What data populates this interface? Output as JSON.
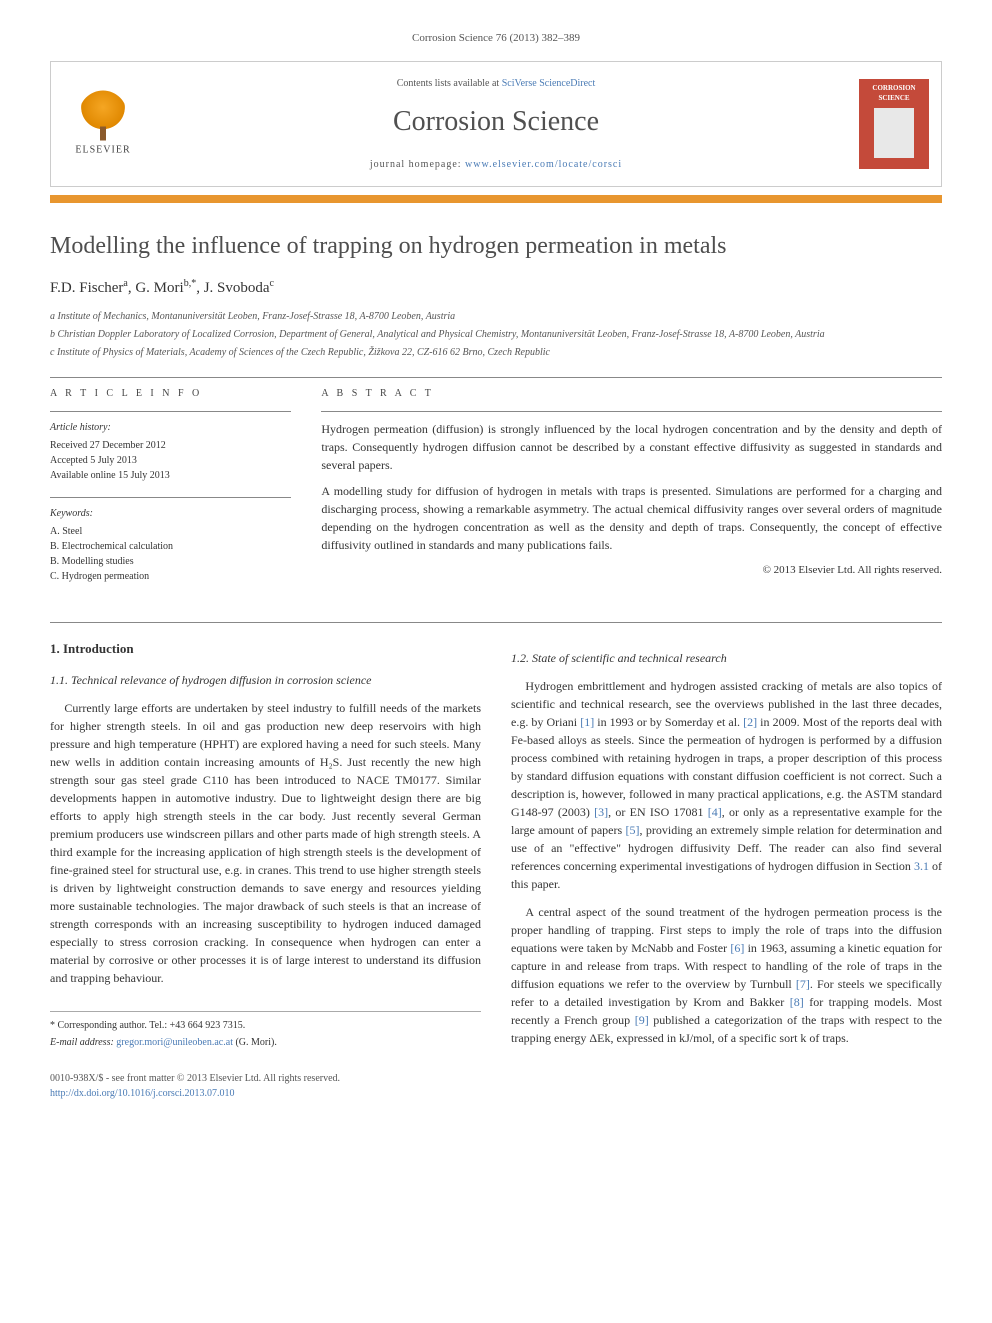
{
  "journal_ref": "Corrosion Science 76 (2013) 382–389",
  "header": {
    "contents_prefix": "Contents lists available at ",
    "contents_link": "SciVerse ScienceDirect",
    "journal_title": "Corrosion Science",
    "homepage_prefix": "journal homepage: ",
    "homepage_url": "www.elsevier.com/locate/corsci",
    "publisher_name": "ELSEVIER",
    "thumb_title": "CORROSION SCIENCE"
  },
  "article": {
    "title": "Modelling the influence of trapping on hydrogen permeation in metals",
    "authors_html": "F.D. Fischer<sup>a</sup>, G. Mori<sup>b,*</sup>, J. Svoboda<sup>c</sup>",
    "affiliations": [
      "a Institute of Mechanics, Montanuniversität Leoben, Franz-Josef-Strasse 18, A-8700 Leoben, Austria",
      "b Christian Doppler Laboratory of Localized Corrosion, Department of General, Analytical and Physical Chemistry, Montanuniversität Leoben, Franz-Josef-Strasse 18, A-8700 Leoben, Austria",
      "c Institute of Physics of Materials, Academy of Sciences of the Czech Republic, Žižkova 22, CZ-616 62 Brno, Czech Republic"
    ]
  },
  "info": {
    "label": "A R T I C L E   I N F O",
    "history_hdr": "Article history:",
    "history": [
      "Received 27 December 2012",
      "Accepted 5 July 2013",
      "Available online 15 July 2013"
    ],
    "keywords_hdr": "Keywords:",
    "keywords": [
      "A. Steel",
      "B. Electrochemical calculation",
      "B. Modelling studies",
      "C. Hydrogen permeation"
    ]
  },
  "abstract": {
    "label": "A B S T R A C T",
    "p1": "Hydrogen permeation (diffusion) is strongly influenced by the local hydrogen concentration and by the density and depth of traps. Consequently hydrogen diffusion cannot be described by a constant effective diffusivity as suggested in standards and several papers.",
    "p2": "A modelling study for diffusion of hydrogen in metals with traps is presented. Simulations are performed for a charging and discharging process, showing a remarkable asymmetry. The actual chemical diffusivity ranges over several orders of magnitude depending on the hydrogen concentration as well as the density and depth of traps. Consequently, the concept of effective diffusivity outlined in standards and many publications fails.",
    "copyright": "© 2013 Elsevier Ltd. All rights reserved."
  },
  "body": {
    "sec1": "1. Introduction",
    "sub11": "1.1. Technical relevance of hydrogen diffusion in corrosion science",
    "p11": "Currently large efforts are undertaken by steel industry to fulfill needs of the markets for higher strength steels. In oil and gas production new deep reservoirs with high pressure and high temperature (HPHT) are explored having a need for such steels. Many new wells in addition contain increasing amounts of H₂S. Just recently the new high strength sour gas steel grade C110 has been introduced to NACE TM0177. Similar developments happen in automotive industry. Due to lightweight design there are big efforts to apply high strength steels in the car body. Just recently several German premium producers use windscreen pillars and other parts made of high strength steels. A third example for the increasing application of high strength steels is the development of fine-grained steel for structural use, e.g. in cranes. This trend to use higher strength steels is driven by lightweight construction demands to save energy and resources yielding more sustainable technologies. The major drawback of such steels is that an increase of strength corresponds with an increasing susceptibility to hydrogen induced damaged especially to stress corrosion cracking. In consequence when hydrogen can enter a material by corrosive or other processes it is of large interest to understand its diffusion and trapping behaviour.",
    "sub12": "1.2. State of scientific and technical research",
    "p12a": "Hydrogen embrittlement and hydrogen assisted cracking of metals are also topics of scientific and technical research, see the overviews published in the last three decades, e.g. by Oriani [1] in 1993 or by Somerday et al. [2] in 2009. Most of the reports deal with Fe-based alloys as steels. Since the permeation of hydrogen is performed by a diffusion process combined with retaining hydrogen in traps, a proper description of this process by standard diffusion equations with constant diffusion coefficient is not correct. Such a description is, however, followed in many practical applications, e.g. the ASTM standard G148-97 (2003) [3], or EN ISO 17081 [4], or only as a representative example for the large amount of papers [5], providing an extremely simple relation for determination and use of an \"effective\" hydrogen diffusivity Deff. The reader can also find several references concerning experimental investigations of hydrogen diffusion in Section 3.1 of this paper.",
    "p12b": "A central aspect of the sound treatment of the hydrogen permeation process is the proper handling of trapping. First steps to imply the role of traps into the diffusion equations were taken by McNabb and Foster [6] in 1963, assuming a kinetic equation for capture in and release from traps. With respect to handling of the role of traps in the diffusion equations we refer to the overview by Turnbull [7]. For steels we specifically refer to a detailed investigation by Krom and Bakker [8] for trapping models. Most recently a French group [9] published a categorization of the traps with respect to the trapping energy ΔEk, expressed in kJ/mol, of a specific sort k of traps."
  },
  "corresponding": {
    "line1": "* Corresponding author. Tel.: +43 664 923 7315.",
    "email_label": "E-mail address: ",
    "email": "gregor.mori@unileoben.ac.at",
    "email_suffix": " (G. Mori)."
  },
  "footer": {
    "issn": "0010-938X/$ - see front matter © 2013 Elsevier Ltd. All rights reserved.",
    "doi": "http://dx.doi.org/10.1016/j.corsci.2013.07.010"
  },
  "colors": {
    "accent_orange": "#e8962f",
    "link_blue": "#4a7bb5",
    "thumb_red": "#c44a3a",
    "text_gray": "#555555"
  }
}
